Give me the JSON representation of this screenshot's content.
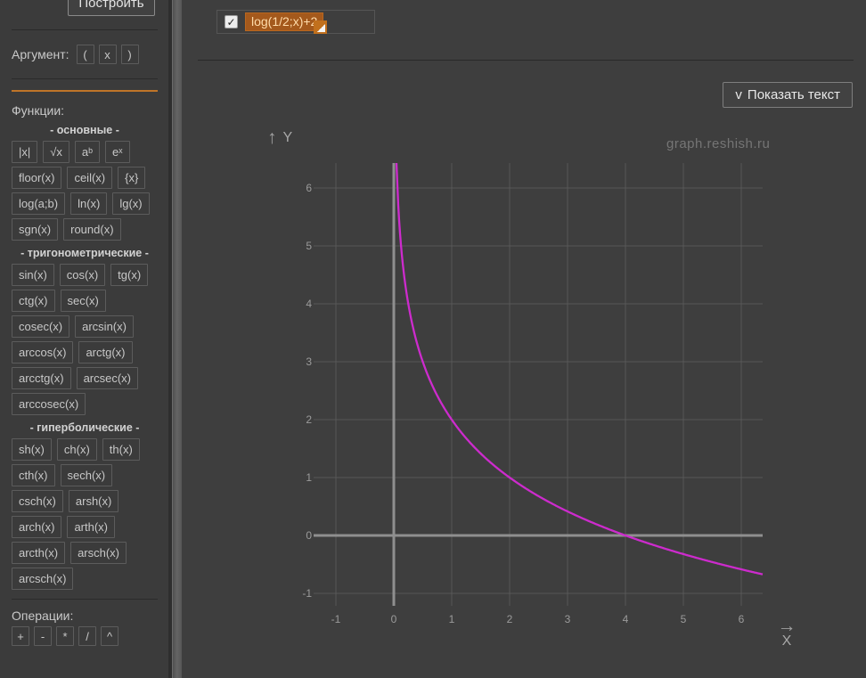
{
  "app": {
    "watermark": "graph.reshish.ru"
  },
  "icons": {
    "checkmark": "✓",
    "up_arrow": "↑",
    "right_arrow": "→",
    "chevron_down": "v"
  },
  "colors": {
    "background": "#3e3e3e",
    "sidebar_background": "#3b3b3b",
    "accent_orange": "#bf7428",
    "tag_background": "#a4591c",
    "tag_text": "#ffdcab",
    "curve_magenta": "#cd2bcd",
    "grid": "#575757",
    "axis": "#8f8f8f",
    "tick_text": "#9b9b9b",
    "button_border": "#5c5c5c"
  },
  "sidebar": {
    "build_button": "Построить",
    "argument_label": "Аргумент:",
    "argument_buttons": [
      "(",
      "x",
      ")"
    ],
    "functions_label": "Функции:",
    "function_sections": [
      {
        "title": "- основные -",
        "rows": [
          [
            "|x|",
            "√x",
            "aᵇ",
            "eˣ"
          ],
          [
            "floor(x)",
            "ceil(x)",
            "{x}"
          ],
          [
            "log(a;b)",
            "ln(x)",
            "lg(x)"
          ],
          [
            "sgn(x)",
            "round(x)"
          ]
        ]
      },
      {
        "title": "- тригонометрические -",
        "rows": [
          [
            "sin(x)",
            "cos(x)",
            "tg(x)"
          ],
          [
            "ctg(x)",
            "sec(x)"
          ],
          [
            "cosec(x)",
            "arcsin(x)"
          ],
          [
            "arccos(x)",
            "arctg(x)"
          ],
          [
            "arcctg(x)",
            "arcsec(x)"
          ],
          [
            "arccosec(x)"
          ]
        ]
      },
      {
        "title": "- гиперболические -",
        "rows": [
          [
            "sh(x)",
            "ch(x)",
            "th(x)"
          ],
          [
            "cth(x)",
            "sech(x)"
          ],
          [
            "csch(x)",
            "arsh(x)"
          ],
          [
            "arch(x)",
            "arth(x)"
          ],
          [
            "arcth(x)",
            "arsch(x)"
          ],
          [
            "arcsch(x)"
          ]
        ]
      }
    ],
    "operations_label": "Операции:",
    "operation_buttons": [
      "+",
      "-",
      "*",
      "/",
      "^"
    ]
  },
  "main": {
    "function_tag": {
      "checked": true,
      "label": "log(1/2;x)+2"
    },
    "show_text_button": {
      "chevron": "v",
      "label": "Показать текст"
    }
  },
  "chart_data": {
    "type": "line",
    "title": "",
    "xlabel": "X",
    "ylabel": "Y",
    "grid": true,
    "x_ticks": [
      -1,
      0,
      1,
      2,
      3,
      4,
      5,
      6
    ],
    "y_ticks": [
      -1,
      0,
      1,
      2,
      3,
      4,
      5,
      6
    ],
    "x_range": [
      -1.45,
      6.37
    ],
    "y_range": [
      -1.22,
      6.43
    ],
    "series": [
      {
        "name": "log(1/2;x)+2",
        "color": "#cd2bcd",
        "function": {
          "kind": "logarithm",
          "log_base": 0.5,
          "offset": 2
        },
        "sample_points": [
          [
            0.0625,
            6
          ],
          [
            0.125,
            5
          ],
          [
            0.25,
            4
          ],
          [
            0.5,
            3
          ],
          [
            1,
            2
          ],
          [
            2,
            1
          ],
          [
            4,
            0
          ],
          [
            6.35,
            -0.67
          ]
        ]
      }
    ],
    "watermark": "graph.reshish.ru"
  }
}
